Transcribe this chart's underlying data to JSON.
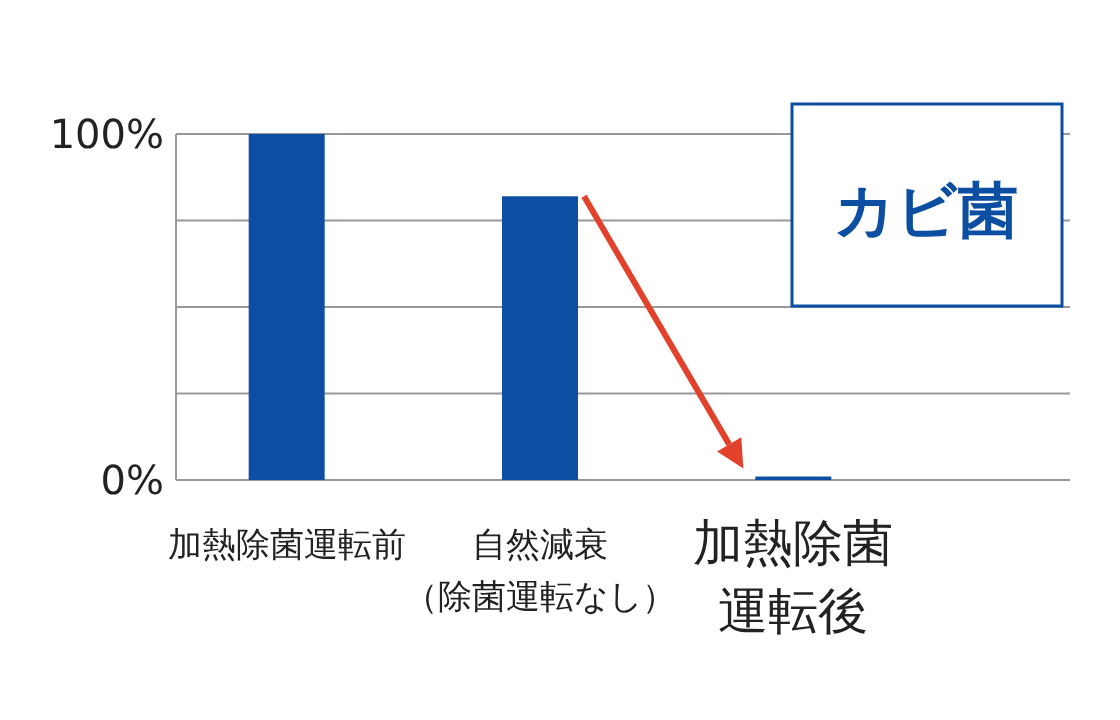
{
  "chart_data": {
    "type": "bar",
    "categories": [
      "加熱除菌運転前",
      "自然減衰（除菌運転なし）",
      "加熱除菌運転後"
    ],
    "values": [
      100,
      82,
      1
    ],
    "color": "#0c4ea2",
    "ylim": [
      0,
      100
    ],
    "yticks": [
      {
        "value": 0,
        "label": "0%"
      },
      {
        "value": 25,
        "label": null
      },
      {
        "value": 50,
        "label": null
      },
      {
        "value": 75,
        "label": null
      },
      {
        "value": 100,
        "label": "100%"
      }
    ],
    "grid": "y",
    "annotations": [
      "カビ菌"
    ]
  }
}
